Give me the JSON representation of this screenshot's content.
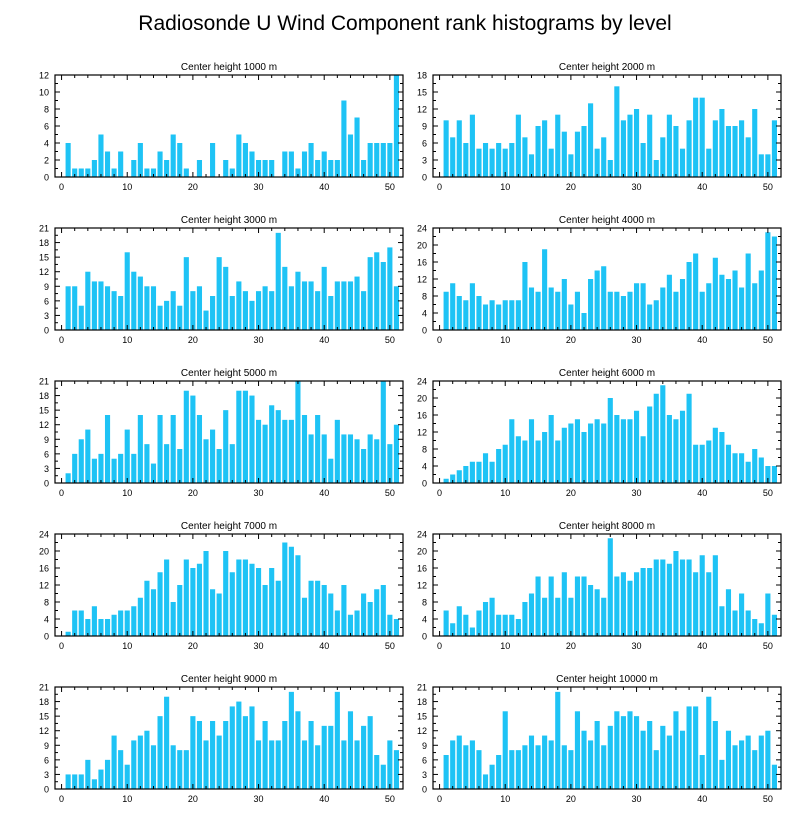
{
  "page": {
    "title": "Radiosonde U Wind Component rank histograms by level",
    "bar_color": "#1ec3f5",
    "axis_color": "#000000"
  },
  "chart_data": [
    {
      "type": "bar",
      "title": "Center height 1000 m",
      "xlim": [
        -1,
        52
      ],
      "ylim": [
        0,
        12
      ],
      "yticks": [
        0,
        2,
        4,
        6,
        8,
        10,
        12
      ],
      "xticks": [
        0,
        10,
        20,
        30,
        40,
        50
      ],
      "x": [
        1,
        2,
        3,
        4,
        5,
        6,
        7,
        8,
        9,
        10,
        11,
        12,
        13,
        14,
        15,
        16,
        17,
        18,
        19,
        20,
        21,
        22,
        23,
        24,
        25,
        26,
        27,
        28,
        29,
        30,
        31,
        32,
        33,
        34,
        35,
        36,
        37,
        38,
        39,
        40,
        41,
        42,
        43,
        44,
        45,
        46,
        47,
        48,
        49,
        50,
        51
      ],
      "values": [
        4,
        1,
        1,
        1,
        2,
        5,
        3,
        1,
        3,
        0,
        2,
        4,
        1,
        1,
        3,
        2,
        5,
        4,
        1,
        0,
        2,
        0,
        4,
        0,
        2,
        1,
        5,
        4,
        3,
        2,
        2,
        2,
        0,
        3,
        3,
        1,
        3,
        4,
        2,
        3,
        2,
        2,
        9,
        5,
        7,
        2,
        4,
        4,
        4,
        4,
        12
      ]
    },
    {
      "type": "bar",
      "title": "Center height 2000 m",
      "xlim": [
        -1,
        52
      ],
      "ylim": [
        0,
        18
      ],
      "yticks": [
        0,
        3,
        6,
        9,
        12,
        15,
        18
      ],
      "xticks": [
        0,
        10,
        20,
        30,
        40,
        50
      ],
      "x": [
        1,
        2,
        3,
        4,
        5,
        6,
        7,
        8,
        9,
        10,
        11,
        12,
        13,
        14,
        15,
        16,
        17,
        18,
        19,
        20,
        21,
        22,
        23,
        24,
        25,
        26,
        27,
        28,
        29,
        30,
        31,
        32,
        33,
        34,
        35,
        36,
        37,
        38,
        39,
        40,
        41,
        42,
        43,
        44,
        45,
        46,
        47,
        48,
        49,
        50,
        51
      ],
      "values": [
        10,
        7,
        10,
        6,
        11,
        5,
        6,
        5,
        6,
        5,
        6,
        11,
        7,
        4,
        9,
        10,
        5,
        11,
        8,
        4,
        8,
        9,
        13,
        5,
        7,
        3,
        16,
        10,
        11,
        12,
        6,
        11,
        3,
        7,
        11,
        9,
        5,
        10,
        14,
        14,
        5,
        10,
        12,
        9,
        9,
        10,
        7,
        12,
        4,
        4,
        10
      ]
    },
    {
      "type": "bar",
      "title": "Center height 3000 m",
      "xlim": [
        -1,
        52
      ],
      "ylim": [
        0,
        21
      ],
      "yticks": [
        0,
        3,
        6,
        9,
        12,
        15,
        18,
        21
      ],
      "xticks": [
        0,
        10,
        20,
        30,
        40,
        50
      ],
      "x": [
        1,
        2,
        3,
        4,
        5,
        6,
        7,
        8,
        9,
        10,
        11,
        12,
        13,
        14,
        15,
        16,
        17,
        18,
        19,
        20,
        21,
        22,
        23,
        24,
        25,
        26,
        27,
        28,
        29,
        30,
        31,
        32,
        33,
        34,
        35,
        36,
        37,
        38,
        39,
        40,
        41,
        42,
        43,
        44,
        45,
        46,
        47,
        48,
        49,
        50,
        51
      ],
      "values": [
        9,
        9,
        5,
        12,
        10,
        10,
        9,
        8,
        7,
        16,
        12,
        11,
        9,
        9,
        5,
        6,
        8,
        5,
        15,
        8,
        9,
        4,
        7,
        15,
        13,
        7,
        10,
        8,
        6,
        8,
        9,
        8,
        20,
        13,
        9,
        12,
        10,
        10,
        8,
        13,
        7,
        10,
        10,
        10,
        11,
        8,
        15,
        16,
        14,
        17,
        9
      ]
    },
    {
      "type": "bar",
      "title": "Center height 4000 m",
      "xlim": [
        -1,
        52
      ],
      "ylim": [
        0,
        24
      ],
      "yticks": [
        0,
        4,
        8,
        12,
        16,
        20,
        24
      ],
      "xticks": [
        0,
        10,
        20,
        30,
        40,
        50
      ],
      "x": [
        1,
        2,
        3,
        4,
        5,
        6,
        7,
        8,
        9,
        10,
        11,
        12,
        13,
        14,
        15,
        16,
        17,
        18,
        19,
        20,
        21,
        22,
        23,
        24,
        25,
        26,
        27,
        28,
        29,
        30,
        31,
        32,
        33,
        34,
        35,
        36,
        37,
        38,
        39,
        40,
        41,
        42,
        43,
        44,
        45,
        46,
        47,
        48,
        49,
        50,
        51
      ],
      "values": [
        9,
        11,
        8,
        7,
        11,
        8,
        6,
        7,
        6,
        7,
        7,
        7,
        16,
        10,
        9,
        19,
        10,
        9,
        12,
        6,
        9,
        4,
        12,
        14,
        15,
        9,
        9,
        8,
        9,
        11,
        11,
        6,
        7,
        10,
        13,
        9,
        12,
        16,
        18,
        9,
        11,
        17,
        13,
        12,
        14,
        10,
        18,
        11,
        14,
        23,
        22
      ]
    },
    {
      "type": "bar",
      "title": "Center height 5000 m",
      "xlim": [
        -1,
        52
      ],
      "ylim": [
        0,
        21
      ],
      "yticks": [
        0,
        3,
        6,
        9,
        12,
        15,
        18,
        21
      ],
      "xticks": [
        0,
        10,
        20,
        30,
        40,
        50
      ],
      "x": [
        1,
        2,
        3,
        4,
        5,
        6,
        7,
        8,
        9,
        10,
        11,
        12,
        13,
        14,
        15,
        16,
        17,
        18,
        19,
        20,
        21,
        22,
        23,
        24,
        25,
        26,
        27,
        28,
        29,
        30,
        31,
        32,
        33,
        34,
        35,
        36,
        37,
        38,
        39,
        40,
        41,
        42,
        43,
        44,
        45,
        46,
        47,
        48,
        49,
        50,
        51
      ],
      "values": [
        2,
        6,
        9,
        11,
        5,
        6,
        14,
        5,
        6,
        11,
        6,
        14,
        8,
        4,
        14,
        8,
        14,
        7,
        19,
        18,
        14,
        9,
        11,
        7,
        15,
        8,
        19,
        19,
        18,
        13,
        12,
        16,
        15,
        13,
        13,
        21,
        14,
        10,
        14,
        10,
        5,
        13,
        10,
        10,
        9,
        7,
        10,
        9,
        21,
        8,
        12
      ]
    },
    {
      "type": "bar",
      "title": "Center height 6000 m",
      "xlim": [
        -1,
        52
      ],
      "ylim": [
        0,
        24
      ],
      "yticks": [
        0,
        4,
        8,
        12,
        16,
        20,
        24
      ],
      "xticks": [
        0,
        10,
        20,
        30,
        40,
        50
      ],
      "x": [
        1,
        2,
        3,
        4,
        5,
        6,
        7,
        8,
        9,
        10,
        11,
        12,
        13,
        14,
        15,
        16,
        17,
        18,
        19,
        20,
        21,
        22,
        23,
        24,
        25,
        26,
        27,
        28,
        29,
        30,
        31,
        32,
        33,
        34,
        35,
        36,
        37,
        38,
        39,
        40,
        41,
        42,
        43,
        44,
        45,
        46,
        47,
        48,
        49,
        50,
        51
      ],
      "values": [
        1,
        2,
        3,
        4,
        5,
        5,
        7,
        5,
        8,
        9,
        15,
        11,
        10,
        15,
        10,
        12,
        16,
        10,
        13,
        14,
        15,
        12,
        14,
        15,
        14,
        20,
        16,
        15,
        15,
        17,
        11,
        18,
        21,
        23,
        16,
        15,
        17,
        21,
        9,
        9,
        10,
        13,
        12,
        9,
        7,
        7,
        5,
        8,
        6,
        4,
        4
      ]
    },
    {
      "type": "bar",
      "title": "Center height 7000 m",
      "xlim": [
        -1,
        52
      ],
      "ylim": [
        0,
        24
      ],
      "yticks": [
        0,
        4,
        8,
        12,
        16,
        20,
        24
      ],
      "xticks": [
        0,
        10,
        20,
        30,
        40,
        50
      ],
      "x": [
        1,
        2,
        3,
        4,
        5,
        6,
        7,
        8,
        9,
        10,
        11,
        12,
        13,
        14,
        15,
        16,
        17,
        18,
        19,
        20,
        21,
        22,
        23,
        24,
        25,
        26,
        27,
        28,
        29,
        30,
        31,
        32,
        33,
        34,
        35,
        36,
        37,
        38,
        39,
        40,
        41,
        42,
        43,
        44,
        45,
        46,
        47,
        48,
        49,
        50,
        51
      ],
      "values": [
        1,
        6,
        6,
        4,
        7,
        4,
        4,
        5,
        6,
        6,
        7,
        9,
        13,
        11,
        15,
        18,
        8,
        12,
        18,
        16,
        17,
        20,
        11,
        10,
        20,
        15,
        18,
        18,
        17,
        16,
        12,
        16,
        13,
        22,
        21,
        19,
        9,
        13,
        13,
        12,
        10,
        6,
        12,
        5,
        6,
        10,
        8,
        11,
        12,
        5,
        4
      ]
    },
    {
      "type": "bar",
      "title": "Center height 8000 m",
      "xlim": [
        -1,
        52
      ],
      "ylim": [
        0,
        24
      ],
      "yticks": [
        0,
        4,
        8,
        12,
        16,
        20,
        24
      ],
      "xticks": [
        0,
        10,
        20,
        30,
        40,
        50
      ],
      "x": [
        1,
        2,
        3,
        4,
        5,
        6,
        7,
        8,
        9,
        10,
        11,
        12,
        13,
        14,
        15,
        16,
        17,
        18,
        19,
        20,
        21,
        22,
        23,
        24,
        25,
        26,
        27,
        28,
        29,
        30,
        31,
        32,
        33,
        34,
        35,
        36,
        37,
        38,
        39,
        40,
        41,
        42,
        43,
        44,
        45,
        46,
        47,
        48,
        49,
        50,
        51
      ],
      "values": [
        6,
        3,
        7,
        5,
        2,
        6,
        8,
        9,
        5,
        5,
        5,
        4,
        8,
        10,
        14,
        9,
        14,
        9,
        15,
        9,
        14,
        14,
        12,
        11,
        9,
        23,
        14,
        15,
        13,
        15,
        16,
        16,
        18,
        18,
        17,
        20,
        18,
        18,
        15,
        19,
        15,
        19,
        7,
        11,
        6,
        10,
        6,
        4,
        3,
        10,
        5
      ]
    },
    {
      "type": "bar",
      "title": "Center height 9000 m",
      "xlim": [
        -1,
        52
      ],
      "ylim": [
        0,
        21
      ],
      "yticks": [
        0,
        3,
        6,
        9,
        12,
        15,
        18,
        21
      ],
      "xticks": [
        0,
        10,
        20,
        30,
        40,
        50
      ],
      "x": [
        1,
        2,
        3,
        4,
        5,
        6,
        7,
        8,
        9,
        10,
        11,
        12,
        13,
        14,
        15,
        16,
        17,
        18,
        19,
        20,
        21,
        22,
        23,
        24,
        25,
        26,
        27,
        28,
        29,
        30,
        31,
        32,
        33,
        34,
        35,
        36,
        37,
        38,
        39,
        40,
        41,
        42,
        43,
        44,
        45,
        46,
        47,
        48,
        49,
        50,
        51
      ],
      "values": [
        3,
        3,
        3,
        6,
        2,
        4,
        6,
        11,
        8,
        5,
        10,
        11,
        12,
        9,
        15,
        19,
        9,
        8,
        8,
        15,
        14,
        10,
        14,
        11,
        14,
        17,
        18,
        15,
        17,
        10,
        14,
        10,
        10,
        14,
        20,
        16,
        10,
        14,
        9,
        13,
        13,
        20,
        10,
        16,
        10,
        13,
        15,
        7,
        5,
        10,
        8
      ]
    },
    {
      "type": "bar",
      "title": "Center height 10000 m",
      "xlim": [
        -1,
        52
      ],
      "ylim": [
        0,
        21
      ],
      "yticks": [
        0,
        3,
        6,
        9,
        12,
        15,
        18,
        21
      ],
      "xticks": [
        0,
        10,
        20,
        30,
        40,
        50
      ],
      "x": [
        1,
        2,
        3,
        4,
        5,
        6,
        7,
        8,
        9,
        10,
        11,
        12,
        13,
        14,
        15,
        16,
        17,
        18,
        19,
        20,
        21,
        22,
        23,
        24,
        25,
        26,
        27,
        28,
        29,
        30,
        31,
        32,
        33,
        34,
        35,
        36,
        37,
        38,
        39,
        40,
        41,
        42,
        43,
        44,
        45,
        46,
        47,
        48,
        49,
        50,
        51
      ],
      "values": [
        7,
        10,
        11,
        9,
        10,
        8,
        3,
        5,
        7,
        16,
        8,
        8,
        9,
        11,
        9,
        11,
        10,
        20,
        9,
        8,
        16,
        12,
        10,
        14,
        9,
        13,
        16,
        15,
        16,
        15,
        12,
        14,
        8,
        13,
        11,
        16,
        12,
        17,
        17,
        7,
        19,
        14,
        6,
        12,
        9,
        10,
        11,
        8,
        11,
        12,
        5
      ]
    }
  ]
}
